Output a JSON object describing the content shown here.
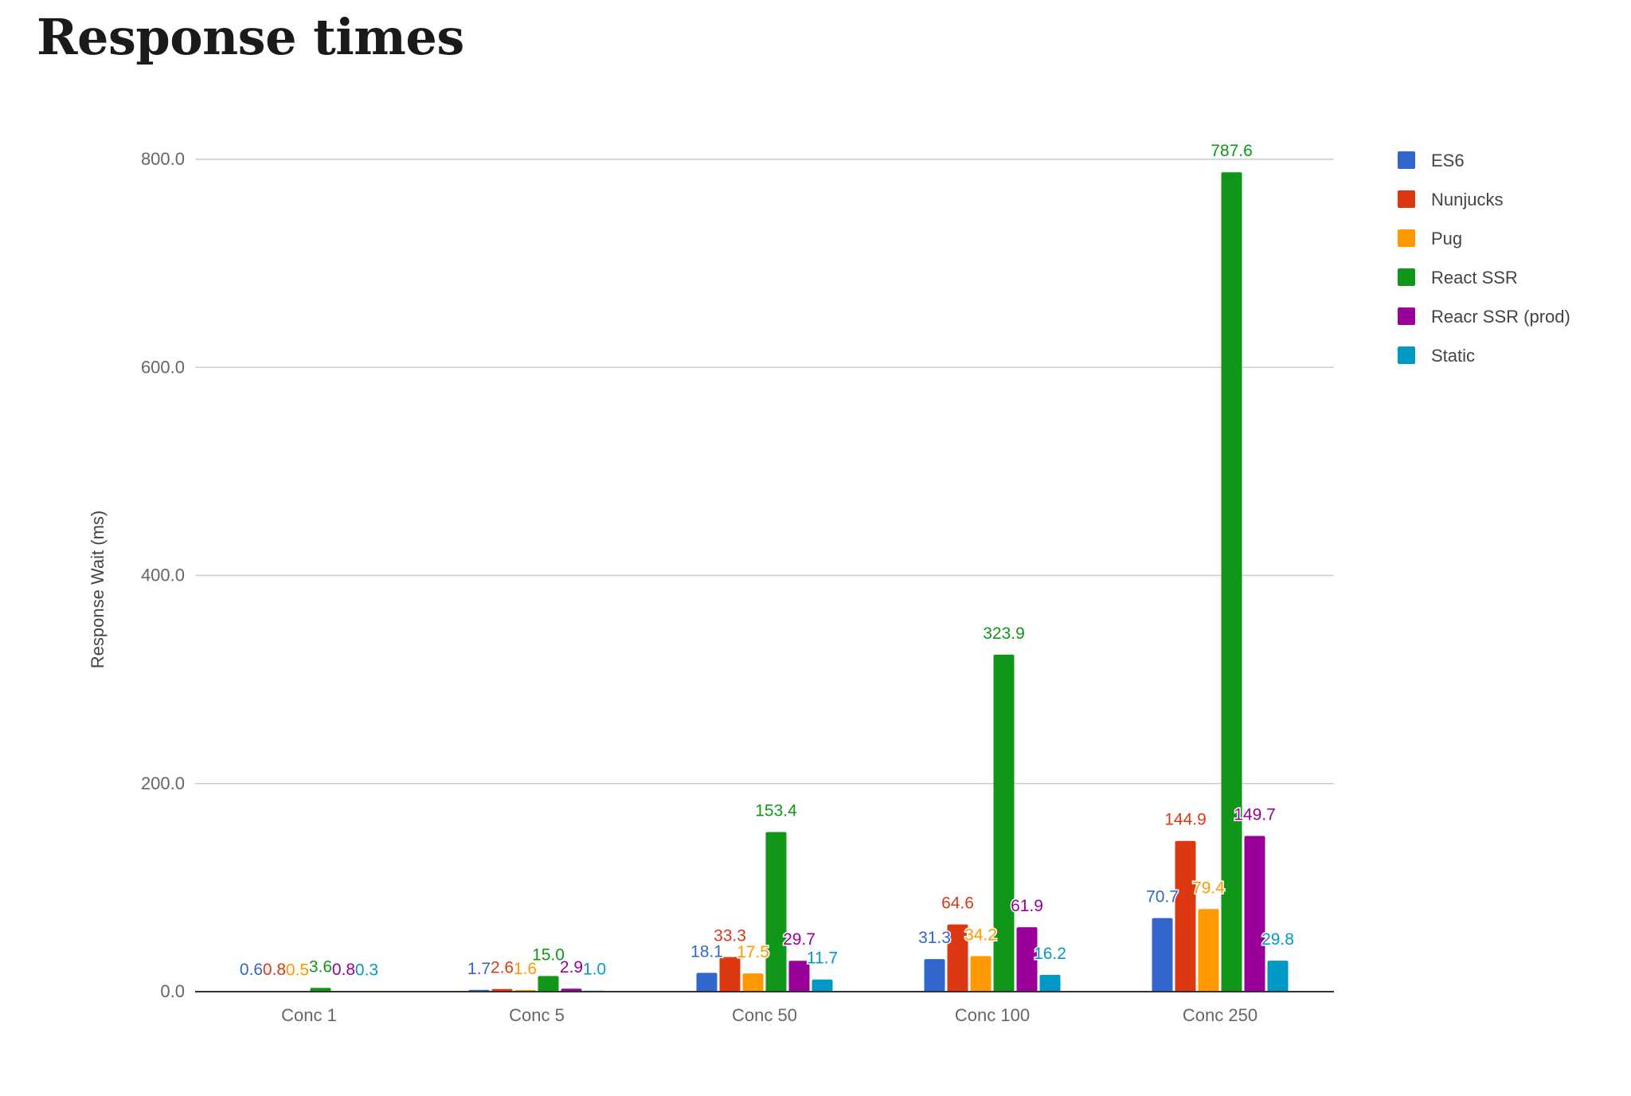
{
  "page": {
    "title": "Response times"
  },
  "chart_data": {
    "type": "bar",
    "title": "",
    "xlabel": "",
    "ylabel": "Response Wait (ms)",
    "ylim": [
      0,
      800
    ],
    "yticks": [
      "0.0",
      "200.0",
      "400.0",
      "600.0",
      "800.0"
    ],
    "grid": true,
    "legend_position": "right",
    "categories": [
      "Conc 1",
      "Conc 5",
      "Conc 50",
      "Conc 100",
      "Conc 250"
    ],
    "series": [
      {
        "name": "ES6",
        "color": "#3366cc",
        "values": [
          0.6,
          1.7,
          18.1,
          31.3,
          70.7
        ],
        "labels": [
          "0.6",
          "1.7",
          "18.1",
          "31.3",
          "70.7"
        ]
      },
      {
        "name": "Nunjucks",
        "color": "#dc3912",
        "values": [
          0.8,
          2.6,
          33.3,
          64.6,
          144.9
        ],
        "labels": [
          "0.8",
          "2.6",
          "33.3",
          "64.6",
          "144.9"
        ]
      },
      {
        "name": "Pug",
        "color": "#ff9900",
        "values": [
          0.5,
          1.6,
          17.5,
          34.2,
          79.4
        ],
        "labels": [
          "0.5",
          "1.6",
          "17.5",
          "34.2",
          "79.4"
        ]
      },
      {
        "name": "React SSR",
        "color": "#109618",
        "values": [
          3.6,
          15.0,
          153.4,
          323.9,
          787.6
        ],
        "labels": [
          "3.6",
          "15.0",
          "153.4",
          "323.9",
          "787.6"
        ]
      },
      {
        "name": "Reacr SSR (prod)",
        "color": "#990099",
        "values": [
          0.8,
          2.9,
          29.7,
          61.9,
          149.7
        ],
        "labels": [
          "0.8",
          "2.9",
          "29.7",
          "61.9",
          "149.7"
        ]
      },
      {
        "name": "Static",
        "color": "#0099c6",
        "values": [
          0.3,
          1.0,
          11.7,
          16.2,
          29.8
        ],
        "labels": [
          "0.3",
          "1.0",
          "11.7",
          "16.2",
          "29.8"
        ]
      }
    ]
  }
}
